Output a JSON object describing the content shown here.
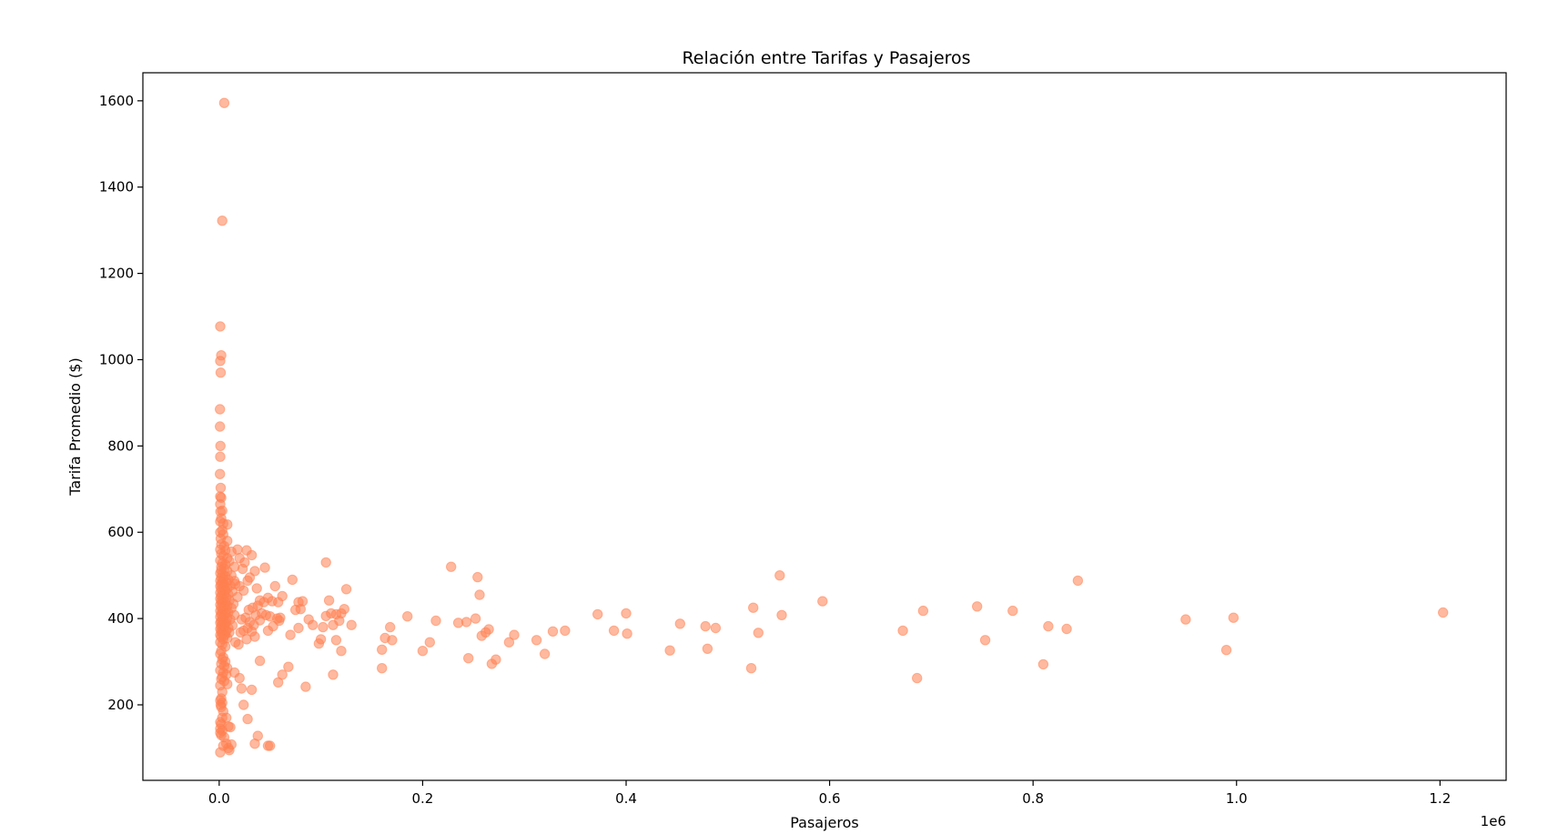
{
  "chart_data": {
    "type": "scatter",
    "title": "Relación entre Tarifas y Pasajeros",
    "xlabel": "Pasajeros",
    "ylabel": "Tarifa Promedio ($)",
    "x_offset_label": "1e6",
    "xlim": [
      -75000,
      1265000
    ],
    "ylim": [
      25,
      1665
    ],
    "x_ticks": [
      0,
      200000,
      400000,
      600000,
      800000,
      1000000,
      1200000
    ],
    "x_tick_labels": [
      "0.0",
      "0.2",
      "0.4",
      "0.6",
      "0.8",
      "1.0",
      "1.2"
    ],
    "y_ticks": [
      200,
      400,
      600,
      800,
      1000,
      1200,
      1400,
      1600
    ],
    "y_tick_labels": [
      "200",
      "400",
      "600",
      "800",
      "1000",
      "1200",
      "1400",
      "1600"
    ],
    "grid": false,
    "marker_color": "#ff7f50",
    "marker_alpha": 0.55,
    "points": [
      [
        5000,
        1595
      ],
      [
        3000,
        1322
      ],
      [
        1000,
        1077
      ],
      [
        2000,
        1010
      ],
      [
        1000,
        997
      ],
      [
        1500,
        970
      ],
      [
        800,
        885
      ],
      [
        800,
        845
      ],
      [
        1200,
        800
      ],
      [
        1000,
        775
      ],
      [
        800,
        735
      ],
      [
        1500,
        703
      ],
      [
        1000,
        683
      ],
      [
        2000,
        680
      ],
      [
        1000,
        665
      ],
      [
        1200,
        648
      ],
      [
        3000,
        650
      ],
      [
        2000,
        632
      ],
      [
        1000,
        625
      ],
      [
        4000,
        620
      ],
      [
        8000,
        618
      ],
      [
        3000,
        605
      ],
      [
        1000,
        600
      ],
      [
        4000,
        595
      ],
      [
        1500,
        585
      ],
      [
        8000,
        580
      ],
      [
        2000,
        572
      ],
      [
        5000,
        568
      ],
      [
        1000,
        560
      ],
      [
        6000,
        558
      ],
      [
        12000,
        555
      ],
      [
        2000,
        550
      ],
      [
        4000,
        545
      ],
      [
        8000,
        540
      ],
      [
        1000,
        535
      ],
      [
        10000,
        533
      ],
      [
        3000,
        528
      ],
      [
        6000,
        525
      ],
      [
        2000,
        520
      ],
      [
        15000,
        520
      ],
      [
        5000,
        515
      ],
      [
        2000,
        512
      ],
      [
        8000,
        510
      ],
      [
        1000,
        505
      ],
      [
        3000,
        503
      ],
      [
        12000,
        500
      ],
      [
        6000,
        498
      ],
      [
        2000,
        495
      ],
      [
        4000,
        492
      ],
      [
        9000,
        490
      ],
      [
        1000,
        488
      ],
      [
        15000,
        487
      ],
      [
        3000,
        485
      ],
      [
        7000,
        483
      ],
      [
        2000,
        480
      ],
      [
        5000,
        478
      ],
      [
        11000,
        476
      ],
      [
        1000,
        475
      ],
      [
        4000,
        472
      ],
      [
        8000,
        470
      ],
      [
        2000,
        468
      ],
      [
        6000,
        465
      ],
      [
        13000,
        463
      ],
      [
        1000,
        460
      ],
      [
        3000,
        458
      ],
      [
        9000,
        456
      ],
      [
        5000,
        455
      ],
      [
        2000,
        452
      ],
      [
        18000,
        450
      ],
      [
        7000,
        448
      ],
      [
        1000,
        446
      ],
      [
        4000,
        444
      ],
      [
        10000,
        442
      ],
      [
        2000,
        440
      ],
      [
        6000,
        438
      ],
      [
        3000,
        436
      ],
      [
        14000,
        434
      ],
      [
        1000,
        432
      ],
      [
        8000,
        430
      ],
      [
        5000,
        428
      ],
      [
        2000,
        426
      ],
      [
        12000,
        424
      ],
      [
        4000,
        422
      ],
      [
        7000,
        420
      ],
      [
        1000,
        418
      ],
      [
        3000,
        416
      ],
      [
        9000,
        414
      ],
      [
        6000,
        412
      ],
      [
        2000,
        410
      ],
      [
        15000,
        408
      ],
      [
        5000,
        406
      ],
      [
        1000,
        404
      ],
      [
        8000,
        402
      ],
      [
        3000,
        400
      ],
      [
        11000,
        398
      ],
      [
        4000,
        396
      ],
      [
        2000,
        394
      ],
      [
        7000,
        392
      ],
      [
        1000,
        390
      ],
      [
        6000,
        388
      ],
      [
        3000,
        386
      ],
      [
        13000,
        384
      ],
      [
        2000,
        382
      ],
      [
        5000,
        380
      ],
      [
        9000,
        378
      ],
      [
        1000,
        376
      ],
      [
        4000,
        374
      ],
      [
        7000,
        372
      ],
      [
        2000,
        370
      ],
      [
        10000,
        368
      ],
      [
        3000,
        366
      ],
      [
        6000,
        364
      ],
      [
        1000,
        362
      ],
      [
        5000,
        360
      ],
      [
        2000,
        357
      ],
      [
        8000,
        355
      ],
      [
        4000,
        352
      ],
      [
        1000,
        345
      ],
      [
        3000,
        340
      ],
      [
        6000,
        335
      ],
      [
        2000,
        325
      ],
      [
        1000,
        318
      ],
      [
        4000,
        310
      ],
      [
        3000,
        305
      ],
      [
        6000,
        300
      ],
      [
        2000,
        295
      ],
      [
        5000,
        290
      ],
      [
        8000,
        285
      ],
      [
        1000,
        280
      ],
      [
        4000,
        275
      ],
      [
        7000,
        270
      ],
      [
        3000,
        265
      ],
      [
        2000,
        260
      ],
      [
        5000,
        255
      ],
      [
        8000,
        248
      ],
      [
        1000,
        245
      ],
      [
        3000,
        230
      ],
      [
        2000,
        215
      ],
      [
        1000,
        210
      ],
      [
        3000,
        205
      ],
      [
        1500,
        200
      ],
      [
        2000,
        195
      ],
      [
        4000,
        185
      ],
      [
        3000,
        170
      ],
      [
        7000,
        170
      ],
      [
        1000,
        160
      ],
      [
        2000,
        155
      ],
      [
        9000,
        150
      ],
      [
        11000,
        148
      ],
      [
        1000,
        145
      ],
      [
        3000,
        140
      ],
      [
        1000,
        135
      ],
      [
        2000,
        130
      ],
      [
        5000,
        125
      ],
      [
        7000,
        110
      ],
      [
        12000,
        108
      ],
      [
        4000,
        105
      ],
      [
        9000,
        100
      ],
      [
        10000,
        95
      ],
      [
        1000,
        90
      ],
      [
        18000,
        560
      ],
      [
        27000,
        558
      ],
      [
        20000,
        540
      ],
      [
        32000,
        547
      ],
      [
        25000,
        530
      ],
      [
        35000,
        510
      ],
      [
        23000,
        515
      ],
      [
        45000,
        518
      ],
      [
        30000,
        495
      ],
      [
        28000,
        488
      ],
      [
        37000,
        470
      ],
      [
        20000,
        475
      ],
      [
        16000,
        480
      ],
      [
        24000,
        465
      ],
      [
        40000,
        442
      ],
      [
        48000,
        448
      ],
      [
        52000,
        440
      ],
      [
        55000,
        475
      ],
      [
        62000,
        452
      ],
      [
        58000,
        438
      ],
      [
        44000,
        438
      ],
      [
        38000,
        430
      ],
      [
        33000,
        425
      ],
      [
        29000,
        420
      ],
      [
        42000,
        412
      ],
      [
        36000,
        408
      ],
      [
        26000,
        402
      ],
      [
        22000,
        398
      ],
      [
        30000,
        392
      ],
      [
        46000,
        408
      ],
      [
        50000,
        405
      ],
      [
        57000,
        400
      ],
      [
        60000,
        402
      ],
      [
        59000,
        395
      ],
      [
        40000,
        396
      ],
      [
        34000,
        385
      ],
      [
        28000,
        378
      ],
      [
        24000,
        372
      ],
      [
        32000,
        370
      ],
      [
        21000,
        368
      ],
      [
        48000,
        372
      ],
      [
        35000,
        358
      ],
      [
        27000,
        352
      ],
      [
        16000,
        345
      ],
      [
        19000,
        340
      ],
      [
        53000,
        382
      ],
      [
        72000,
        490
      ],
      [
        105000,
        530
      ],
      [
        78000,
        438
      ],
      [
        82000,
        440
      ],
      [
        88000,
        398
      ],
      [
        75000,
        420
      ],
      [
        80000,
        422
      ],
      [
        108000,
        442
      ],
      [
        110000,
        412
      ],
      [
        115000,
        410
      ],
      [
        105000,
        406
      ],
      [
        118000,
        395
      ],
      [
        120000,
        412
      ],
      [
        123000,
        422
      ],
      [
        125000,
        468
      ],
      [
        130000,
        385
      ],
      [
        112000,
        385
      ],
      [
        102000,
        380
      ],
      [
        92000,
        385
      ],
      [
        98000,
        342
      ],
      [
        100000,
        352
      ],
      [
        115000,
        350
      ],
      [
        120000,
        325
      ],
      [
        112000,
        270
      ],
      [
        85000,
        242
      ],
      [
        78000,
        378
      ],
      [
        70000,
        362
      ],
      [
        68000,
        288
      ],
      [
        62000,
        270
      ],
      [
        58000,
        252
      ],
      [
        40000,
        302
      ],
      [
        15000,
        275
      ],
      [
        20000,
        262
      ],
      [
        22000,
        238
      ],
      [
        28000,
        167
      ],
      [
        24000,
        200
      ],
      [
        32000,
        235
      ],
      [
        38000,
        128
      ],
      [
        35000,
        110
      ],
      [
        48000,
        105
      ],
      [
        50000,
        105
      ],
      [
        160000,
        328
      ],
      [
        163000,
        355
      ],
      [
        168000,
        380
      ],
      [
        170000,
        350
      ],
      [
        160000,
        285
      ],
      [
        185000,
        405
      ],
      [
        200000,
        325
      ],
      [
        207000,
        345
      ],
      [
        213000,
        395
      ],
      [
        228000,
        520
      ],
      [
        235000,
        390
      ],
      [
        243000,
        392
      ],
      [
        245000,
        308
      ],
      [
        252000,
        400
      ],
      [
        254000,
        496
      ],
      [
        256000,
        455
      ],
      [
        258000,
        360
      ],
      [
        262000,
        368
      ],
      [
        265000,
        375
      ],
      [
        268000,
        295
      ],
      [
        272000,
        305
      ],
      [
        285000,
        345
      ],
      [
        290000,
        362
      ],
      [
        312000,
        350
      ],
      [
        320000,
        318
      ],
      [
        328000,
        370
      ],
      [
        340000,
        372
      ],
      [
        372000,
        410
      ],
      [
        388000,
        372
      ],
      [
        400000,
        412
      ],
      [
        401000,
        365
      ],
      [
        443000,
        326
      ],
      [
        453000,
        388
      ],
      [
        478000,
        382
      ],
      [
        480000,
        330
      ],
      [
        488000,
        378
      ],
      [
        523000,
        285
      ],
      [
        525000,
        425
      ],
      [
        530000,
        367
      ],
      [
        551000,
        500
      ],
      [
        553000,
        408
      ],
      [
        593000,
        440
      ],
      [
        672000,
        372
      ],
      [
        686000,
        262
      ],
      [
        692000,
        418
      ],
      [
        745000,
        428
      ],
      [
        753000,
        350
      ],
      [
        780000,
        418
      ],
      [
        810000,
        294
      ],
      [
        815000,
        382
      ],
      [
        833000,
        376
      ],
      [
        844000,
        488
      ],
      [
        950000,
        398
      ],
      [
        990000,
        327
      ],
      [
        997000,
        402
      ],
      [
        1203000,
        414
      ]
    ]
  }
}
